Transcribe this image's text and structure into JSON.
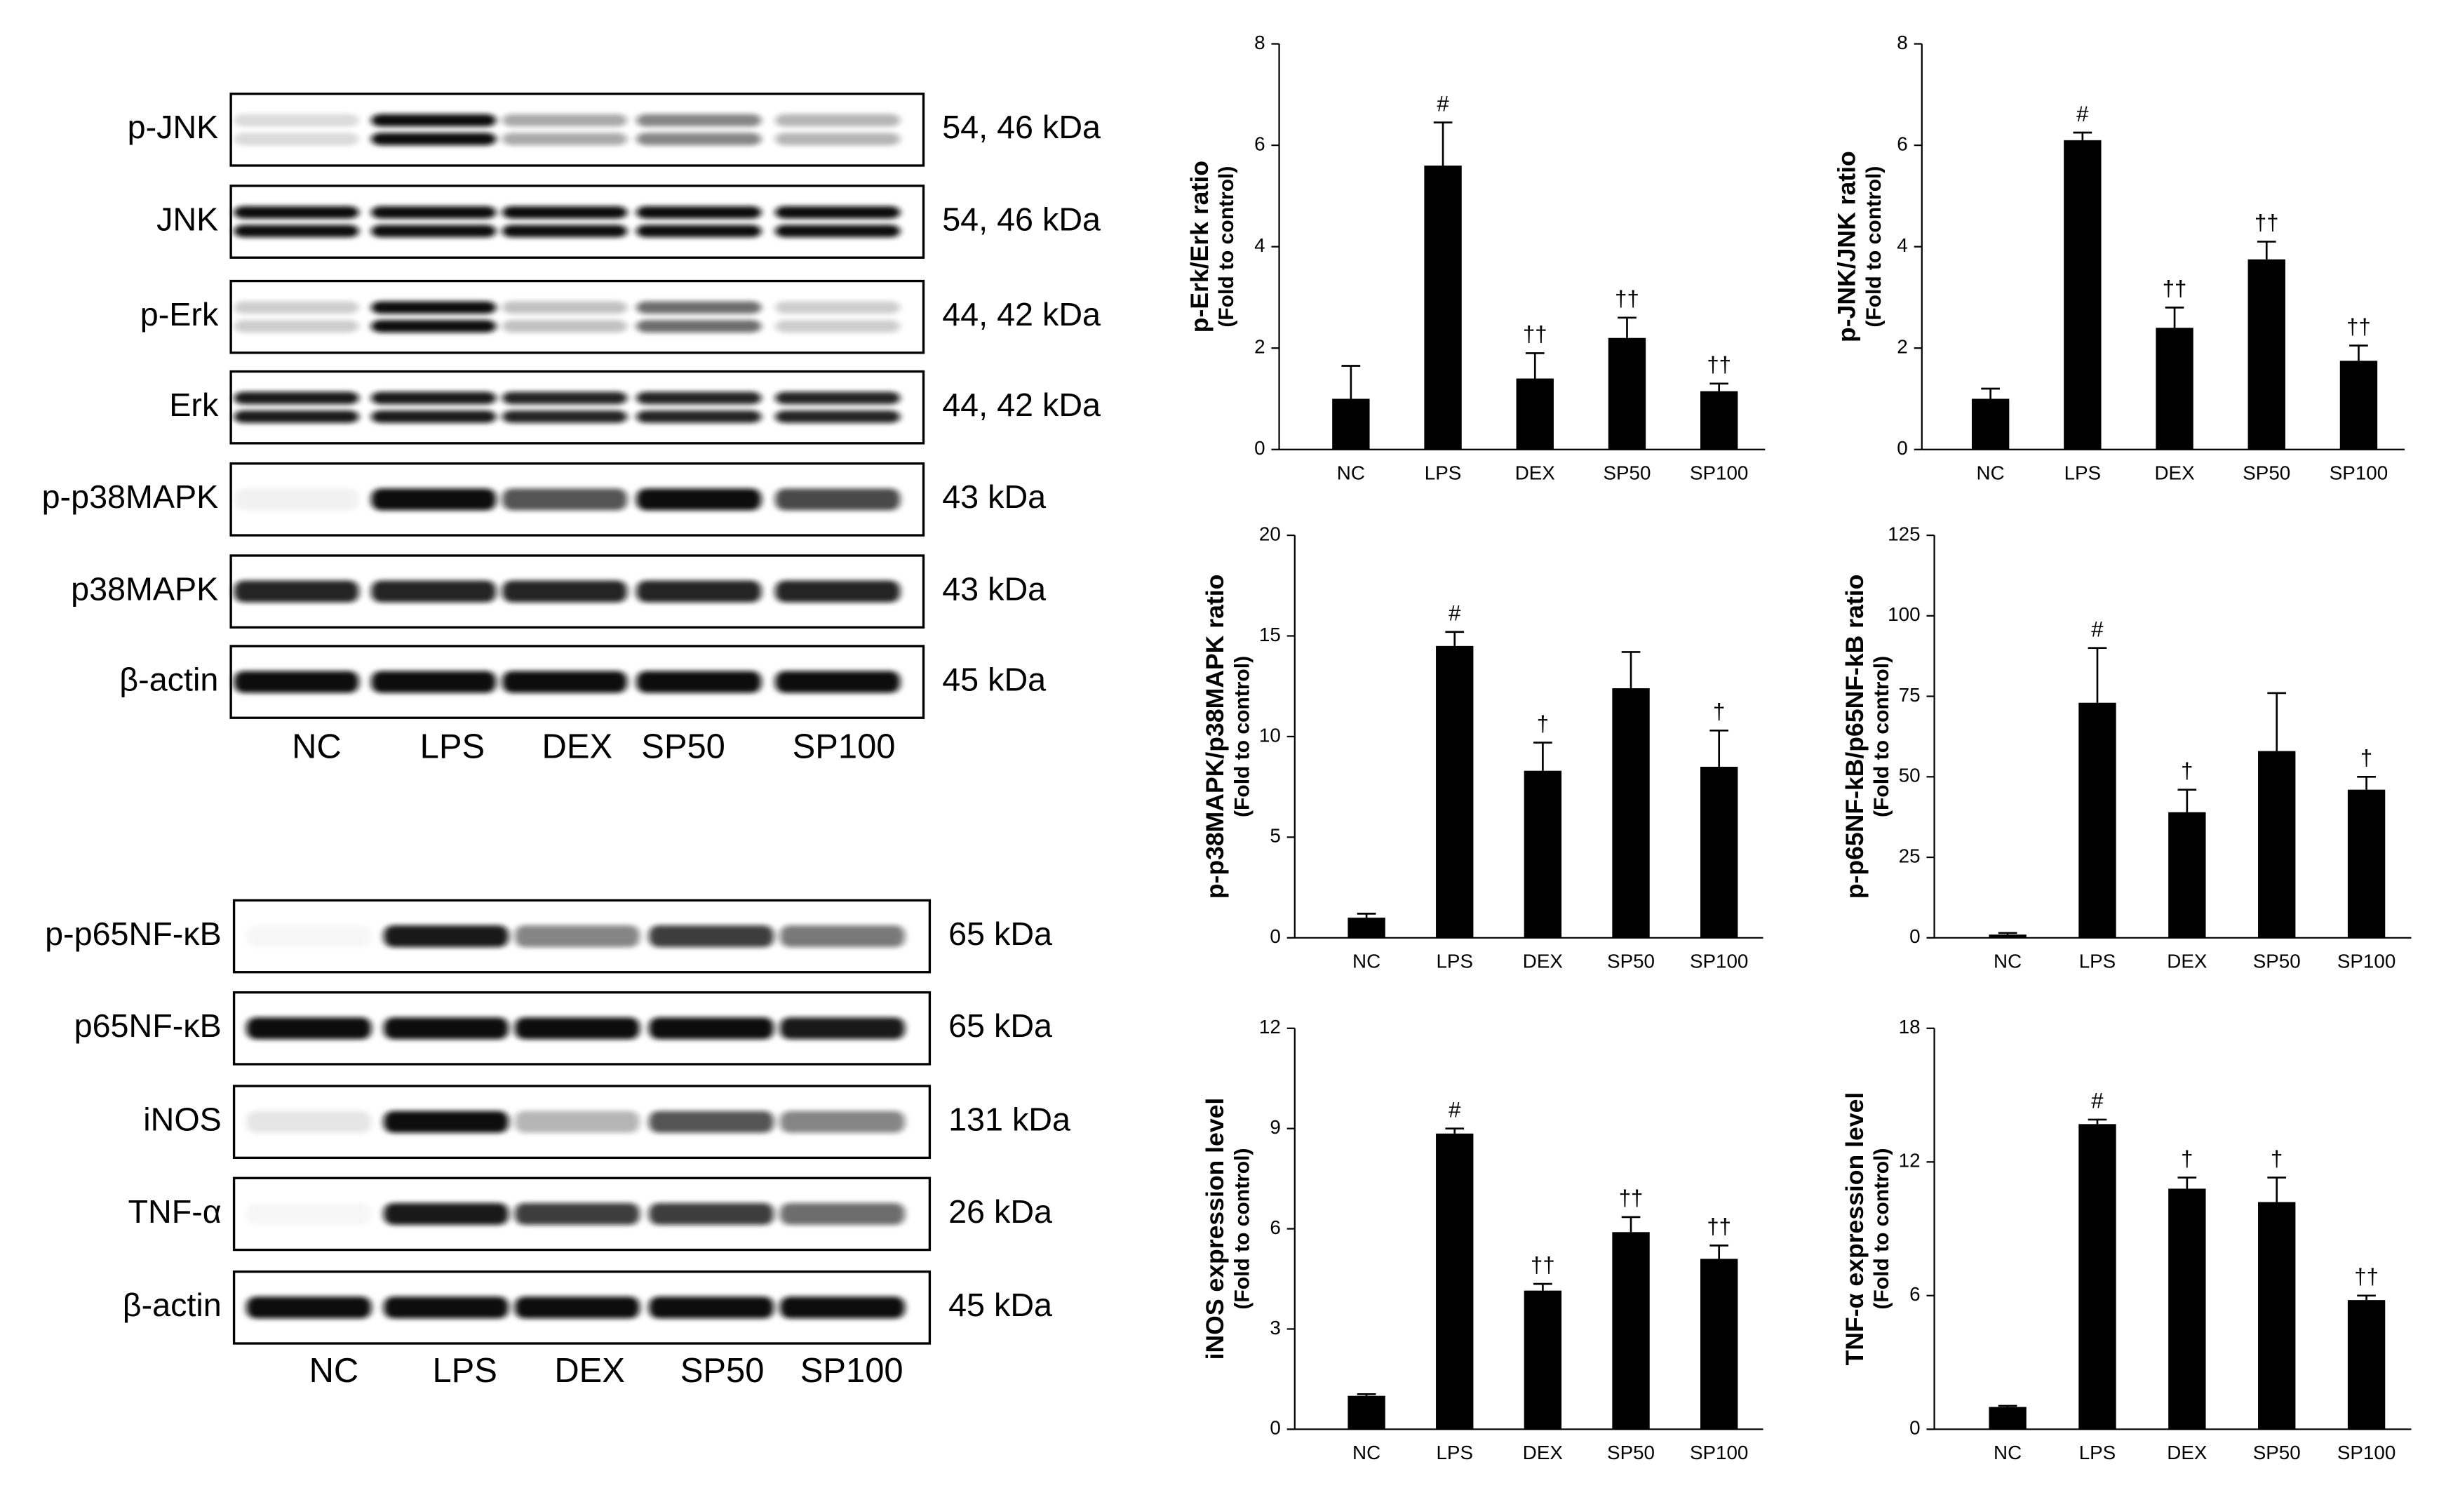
{
  "blots": [
    {
      "rows": [
        {
          "label": "p-JNK",
          "size": "54, 46 kDa"
        },
        {
          "label": "JNK",
          "size": "54, 46 kDa"
        },
        {
          "label": "p-Erk",
          "size": "44, 42 kDa"
        },
        {
          "label": "Erk",
          "size": "44, 42 kDa"
        },
        {
          "label": "p-p38MAPK",
          "size": "43 kDa"
        },
        {
          "label": "p38MAPK",
          "size": "43 kDa"
        },
        {
          "label": "β-actin",
          "size": "45 kDa"
        }
      ],
      "lanes": [
        "NC",
        "LPS",
        "DEX",
        "SP50",
        "SP100"
      ]
    },
    {
      "rows": [
        {
          "label": "p-p65NF-κB",
          "size": "65 kDa"
        },
        {
          "label": "p65NF-κB",
          "size": "65 kDa"
        },
        {
          "label": "iNOS",
          "size": "131 kDa"
        },
        {
          "label": "TNF-α",
          "size": "26 kDa"
        },
        {
          "label": "β-actin",
          "size": "45 kDa"
        }
      ],
      "lanes": [
        "NC",
        "LPS",
        "DEX",
        "SP50",
        "SP100"
      ]
    }
  ],
  "chart_data": [
    {
      "type": "bar",
      "y_label": "p-Erk/Erk ratio",
      "y_label_note": "(Fold to control)",
      "categories": [
        "NC",
        "LPS",
        "DEX",
        "SP50",
        "SP100"
      ],
      "values": [
        1.0,
        5.6,
        1.4,
        2.2,
        1.15
      ],
      "errors": [
        0.65,
        0.85,
        0.5,
        0.4,
        0.15
      ],
      "annotations": [
        null,
        "#",
        "††",
        "††",
        "††"
      ],
      "color": "#000000",
      "ylim": [
        0,
        8
      ],
      "yticks": [
        0,
        2,
        4,
        6,
        8
      ]
    },
    {
      "type": "bar",
      "y_label": "p-JNK/JNK ratio",
      "y_label_note": "(Fold to control)",
      "categories": [
        "NC",
        "LPS",
        "DEX",
        "SP50",
        "SP100"
      ],
      "values": [
        1.0,
        6.1,
        2.4,
        3.75,
        1.75
      ],
      "errors": [
        0.2,
        0.15,
        0.4,
        0.35,
        0.3
      ],
      "annotations": [
        null,
        "#",
        "††",
        "††",
        "††"
      ],
      "color": "#000000",
      "ylim": [
        0,
        8
      ],
      "yticks": [
        0,
        2,
        4,
        6,
        8
      ]
    },
    {
      "type": "bar",
      "y_label": "p-p38MAPK/p38MAPK ratio",
      "y_label_note": "(Fold to control)",
      "categories": [
        "NC",
        "LPS",
        "DEX",
        "SP50",
        "SP100"
      ],
      "values": [
        1.0,
        14.5,
        8.3,
        12.4,
        8.5
      ],
      "errors": [
        0.2,
        0.7,
        1.4,
        1.8,
        1.8
      ],
      "annotations": [
        null,
        "#",
        "†",
        null,
        "†"
      ],
      "color": "#000000",
      "ylim": [
        0,
        20
      ],
      "yticks": [
        0,
        5,
        10,
        15,
        20
      ]
    },
    {
      "type": "bar",
      "y_label": "p-p65NF-kB/p65NF-kB ratio",
      "y_label_note": "(Fold to control)",
      "categories": [
        "NC",
        "LPS",
        "DEX",
        "SP50",
        "SP100"
      ],
      "values": [
        1,
        73,
        39,
        58,
        46
      ],
      "errors": [
        0.5,
        17,
        7,
        18,
        4
      ],
      "annotations": [
        null,
        "#",
        "†",
        null,
        "†"
      ],
      "color": "#000000",
      "ylim": [
        0,
        125
      ],
      "yticks": [
        0,
        25,
        50,
        75,
        100,
        125
      ]
    },
    {
      "type": "bar",
      "y_label": "iNOS expression level",
      "y_label_note": "(Fold to control)",
      "categories": [
        "NC",
        "LPS",
        "DEX",
        "SP50",
        "SP100"
      ],
      "values": [
        1.0,
        8.85,
        4.15,
        5.9,
        5.1
      ],
      "errors": [
        0.05,
        0.15,
        0.2,
        0.45,
        0.4
      ],
      "annotations": [
        null,
        "#",
        "††",
        "††",
        "††"
      ],
      "color": "#000000",
      "ylim": [
        0,
        12
      ],
      "yticks": [
        0,
        3,
        6,
        9,
        12
      ]
    },
    {
      "type": "bar",
      "y_label": "TNF-α expression level",
      "y_label_note": "(Fold to control)",
      "categories": [
        "NC",
        "LPS",
        "DEX",
        "SP50",
        "SP100"
      ],
      "values": [
        1.0,
        13.7,
        10.8,
        10.2,
        5.8
      ],
      "errors": [
        0.05,
        0.2,
        0.5,
        1.1,
        0.2
      ],
      "annotations": [
        null,
        "#",
        "†",
        "†",
        "††"
      ],
      "color": "#000000",
      "ylim": [
        0,
        18
      ],
      "yticks": [
        0,
        6,
        12,
        18
      ]
    }
  ]
}
